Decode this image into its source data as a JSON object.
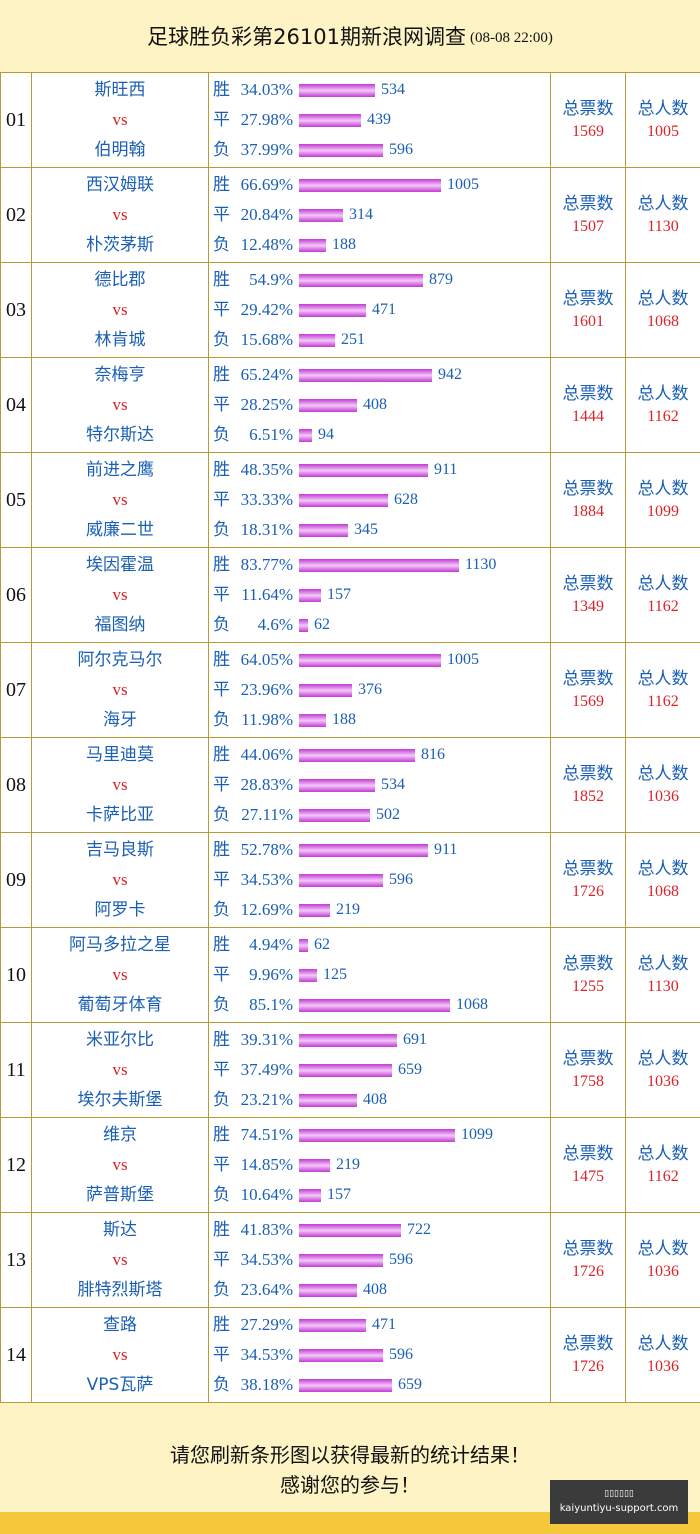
{
  "header": {
    "title": "足球胜负彩第26101期新浪网调查",
    "time": "(08-08 22:00)"
  },
  "labels": {
    "vs": "vs",
    "win": "胜",
    "draw": "平",
    "lose": "负",
    "total_votes": "总票数",
    "total_people": "总人数"
  },
  "matches": [
    {
      "no": "01",
      "home": "斯旺西",
      "away": "伯明翰",
      "win_pct": "34.03%",
      "win": 534,
      "draw_pct": "27.98%",
      "draw": 439,
      "lose_pct": "37.99%",
      "lose": 596,
      "votes": "1569",
      "people": "1005"
    },
    {
      "no": "02",
      "home": "西汉姆联",
      "away": "朴茨茅斯",
      "win_pct": "66.69%",
      "win": 1005,
      "draw_pct": "20.84%",
      "draw": 314,
      "lose_pct": "12.48%",
      "lose": 188,
      "votes": "1507",
      "people": "1130"
    },
    {
      "no": "03",
      "home": "德比郡",
      "away": "林肯城",
      "win_pct": "54.9%",
      "win": 879,
      "draw_pct": "29.42%",
      "draw": 471,
      "lose_pct": "15.68%",
      "lose": 251,
      "votes": "1601",
      "people": "1068"
    },
    {
      "no": "04",
      "home": "奈梅亨",
      "away": "特尔斯达",
      "win_pct": "65.24%",
      "win": 942,
      "draw_pct": "28.25%",
      "draw": 408,
      "lose_pct": "6.51%",
      "lose": 94,
      "votes": "1444",
      "people": "1162"
    },
    {
      "no": "05",
      "home": "前进之鹰",
      "away": "威廉二世",
      "win_pct": "48.35%",
      "win": 911,
      "draw_pct": "33.33%",
      "draw": 628,
      "lose_pct": "18.31%",
      "lose": 345,
      "votes": "1884",
      "people": "1099"
    },
    {
      "no": "06",
      "home": "埃因霍温",
      "away": "福图纳",
      "win_pct": "83.77%",
      "win": 1130,
      "draw_pct": "11.64%",
      "draw": 157,
      "lose_pct": "4.6%",
      "lose": 62,
      "votes": "1349",
      "people": "1162"
    },
    {
      "no": "07",
      "home": "阿尔克马尔",
      "away": "海牙",
      "win_pct": "64.05%",
      "win": 1005,
      "draw_pct": "23.96%",
      "draw": 376,
      "lose_pct": "11.98%",
      "lose": 188,
      "votes": "1569",
      "people": "1162"
    },
    {
      "no": "08",
      "home": "马里迪莫",
      "away": "卡萨比亚",
      "win_pct": "44.06%",
      "win": 816,
      "draw_pct": "28.83%",
      "draw": 534,
      "lose_pct": "27.11%",
      "lose": 502,
      "votes": "1852",
      "people": "1036"
    },
    {
      "no": "09",
      "home": "吉马良斯",
      "away": "阿罗卡",
      "win_pct": "52.78%",
      "win": 911,
      "draw_pct": "34.53%",
      "draw": 596,
      "lose_pct": "12.69%",
      "lose": 219,
      "votes": "1726",
      "people": "1068"
    },
    {
      "no": "10",
      "home": "阿马多拉之星",
      "away": "葡萄牙体育",
      "win_pct": "4.94%",
      "win": 62,
      "draw_pct": "9.96%",
      "draw": 125,
      "lose_pct": "85.1%",
      "lose": 1068,
      "votes": "1255",
      "people": "1130"
    },
    {
      "no": "11",
      "home": "米亚尔比",
      "away": "埃尔夫斯堡",
      "win_pct": "39.31%",
      "win": 691,
      "draw_pct": "37.49%",
      "draw": 659,
      "lose_pct": "23.21%",
      "lose": 408,
      "votes": "1758",
      "people": "1036"
    },
    {
      "no": "12",
      "home": "维京",
      "away": "萨普斯堡",
      "win_pct": "74.51%",
      "win": 1099,
      "draw_pct": "14.85%",
      "draw": 219,
      "lose_pct": "10.64%",
      "lose": 157,
      "votes": "1475",
      "people": "1162"
    },
    {
      "no": "13",
      "home": "斯达",
      "away": "腓特烈斯塔",
      "win_pct": "41.83%",
      "win": 722,
      "draw_pct": "34.53%",
      "draw": 596,
      "lose_pct": "23.64%",
      "lose": 408,
      "votes": "1726",
      "people": "1036"
    },
    {
      "no": "14",
      "home": "查路",
      "away": "VPS瓦萨",
      "win_pct": "27.29%",
      "win": 471,
      "draw_pct": "34.53%",
      "draw": 596,
      "lose_pct": "38.18%",
      "lose": 659,
      "votes": "1726",
      "people": "1036"
    }
  ],
  "footer": {
    "line1": "请您刷新条形图以获得最新的统计结果！",
    "line2": "感谢您的参与！"
  },
  "badge": {
    "line1": "▯▯▯▯▯▯",
    "line2": "kaiyuntiyu-support.com"
  },
  "colors": {
    "page_bg": "#fdf3c4",
    "border": "#b89a36",
    "team_text": "#1a5fb4",
    "accent_red": "#d8232a",
    "bar": "#c13ad1"
  }
}
